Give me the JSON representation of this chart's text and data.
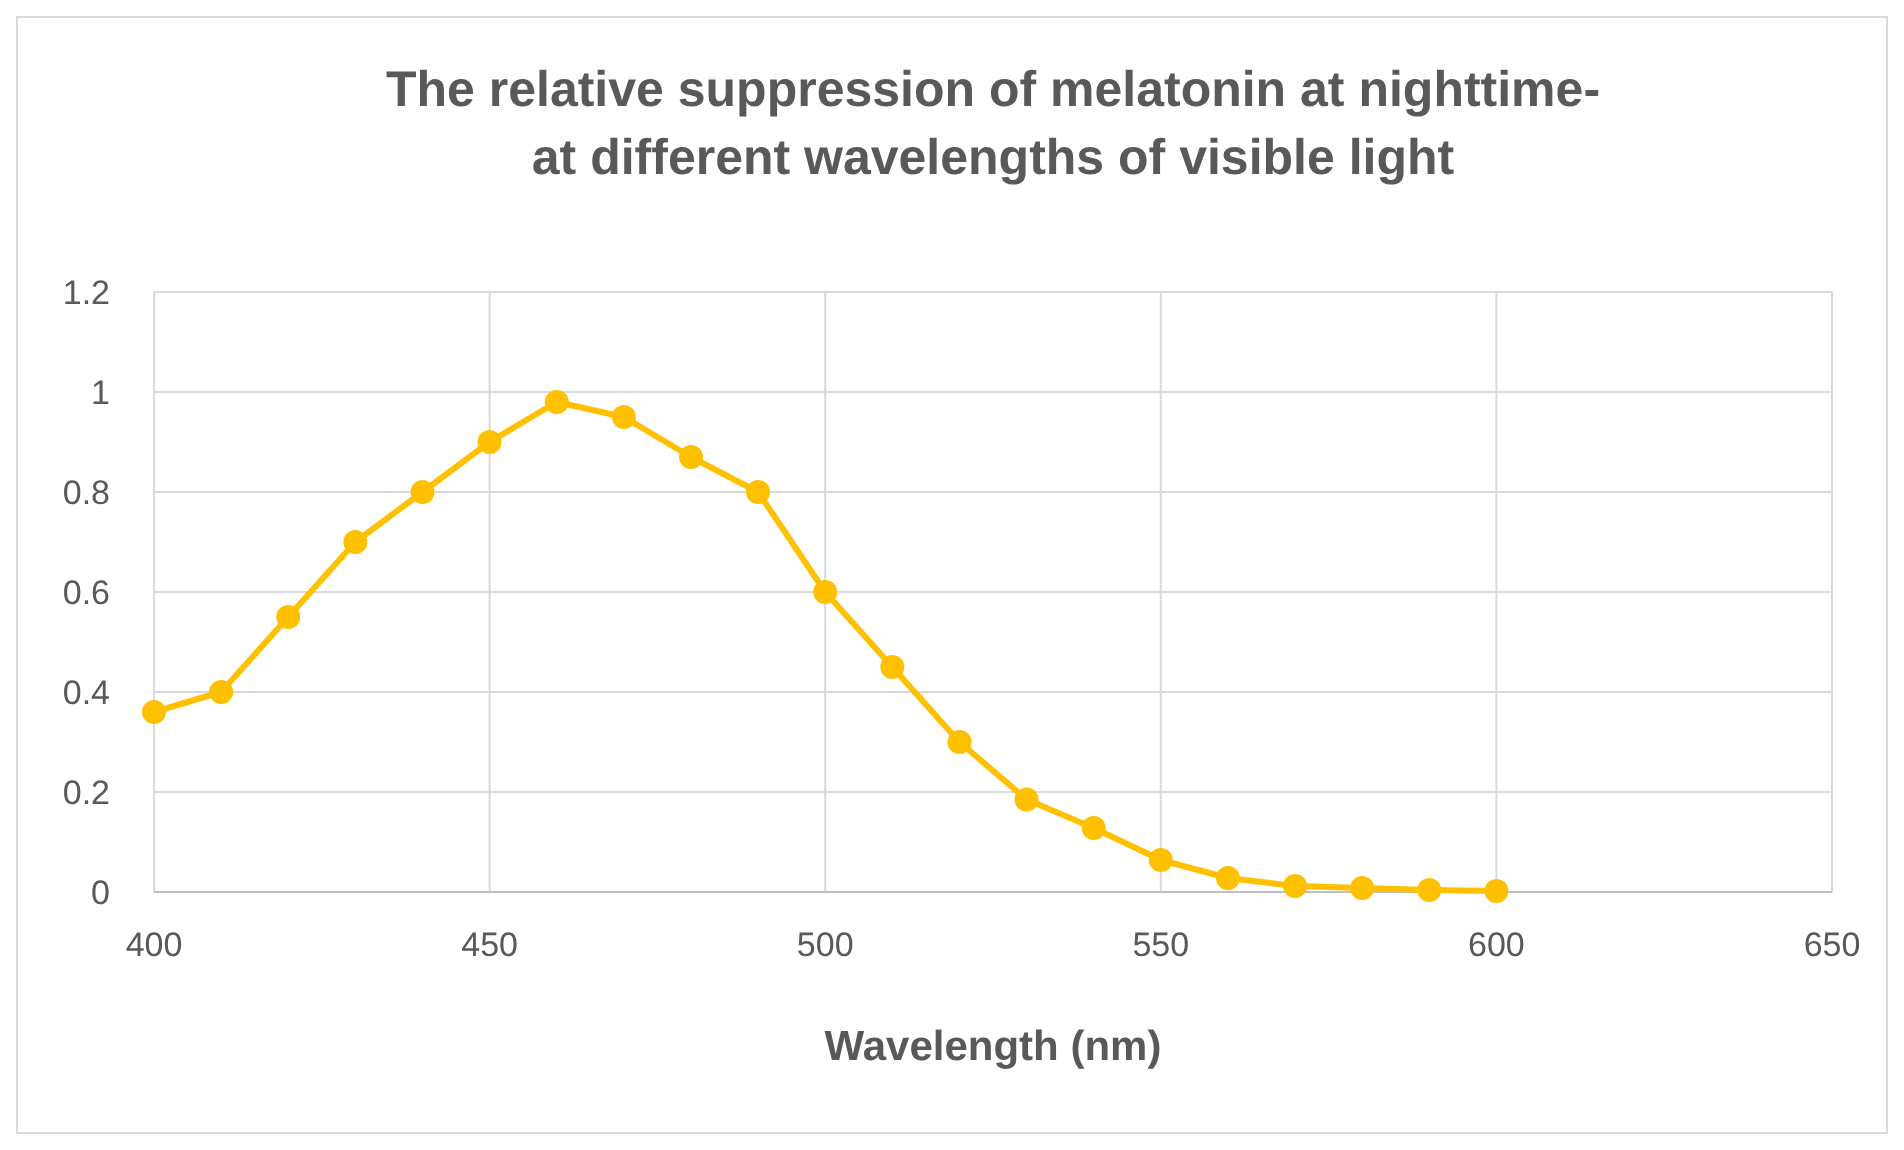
{
  "chart_data": {
    "type": "line",
    "title": "The relative suppression of melatonin at nighttime-\nat different wavelengths of visible light",
    "xlabel": "Wavelength (nm)",
    "x": [
      400,
      410,
      420,
      430,
      440,
      450,
      460,
      470,
      480,
      490,
      500,
      510,
      520,
      530,
      540,
      550,
      560,
      570,
      580,
      590,
      600
    ],
    "series": [
      {
        "color": "#ffc000",
        "values": [
          0.36,
          0.4,
          0.55,
          0.7,
          0.8,
          0.9,
          0.98,
          0.95,
          0.87,
          0.8,
          0.6,
          0.45,
          0.3,
          0.185,
          0.128,
          0.064,
          0.028,
          0.012,
          0.008,
          0.004,
          0.002
        ]
      }
    ],
    "xlim": [
      400,
      650
    ],
    "xticks": [
      400,
      450,
      500,
      550,
      600,
      650
    ],
    "ylim": [
      0,
      1.2
    ],
    "yticks": [
      0,
      0.2,
      0.4,
      0.6,
      0.8,
      1,
      1.2
    ],
    "grid": true,
    "marker": "circle",
    "line_style": "solid"
  }
}
